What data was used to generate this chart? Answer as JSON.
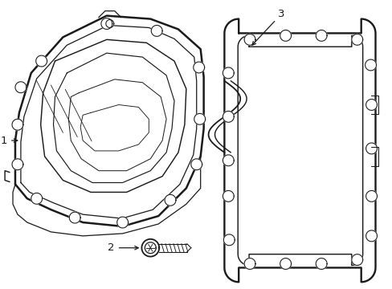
{
  "background_color": "#ffffff",
  "line_color": "#1a1a1a",
  "line_width": 1.3,
  "label_color": "#000000",
  "figsize": [
    4.89,
    3.6
  ],
  "dpi": 100
}
